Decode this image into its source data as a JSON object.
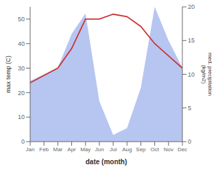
{
  "chart_data": {
    "type": "line",
    "categories": [
      "Jan",
      "Feb",
      "Mar",
      "Apr",
      "May",
      "Jun",
      "Jul",
      "Aug",
      "Sep",
      "Oct",
      "Nov",
      "Dec"
    ],
    "xlabel": "date (month)",
    "ylabel": "max temp (C)",
    "y2label": "med. precipitation\n(kg/m2)",
    "ylim": [
      0,
      55
    ],
    "yticks": [
      0,
      10,
      20,
      30,
      40,
      50
    ],
    "y2lim": [
      0,
      20
    ],
    "y2ticks": [
      0,
      5,
      10,
      15,
      20
    ],
    "series": [
      {
        "type": "area",
        "axis": "y2",
        "color": "#aabbee",
        "values": [
          9,
          10,
          11,
          16,
          19,
          6,
          1,
          2,
          8,
          20,
          15,
          11
        ]
      },
      {
        "type": "line",
        "color": "#cc3333",
        "values": [
          24,
          27,
          30,
          38,
          50,
          50,
          52,
          51,
          47,
          40,
          35,
          30
        ]
      }
    ]
  }
}
